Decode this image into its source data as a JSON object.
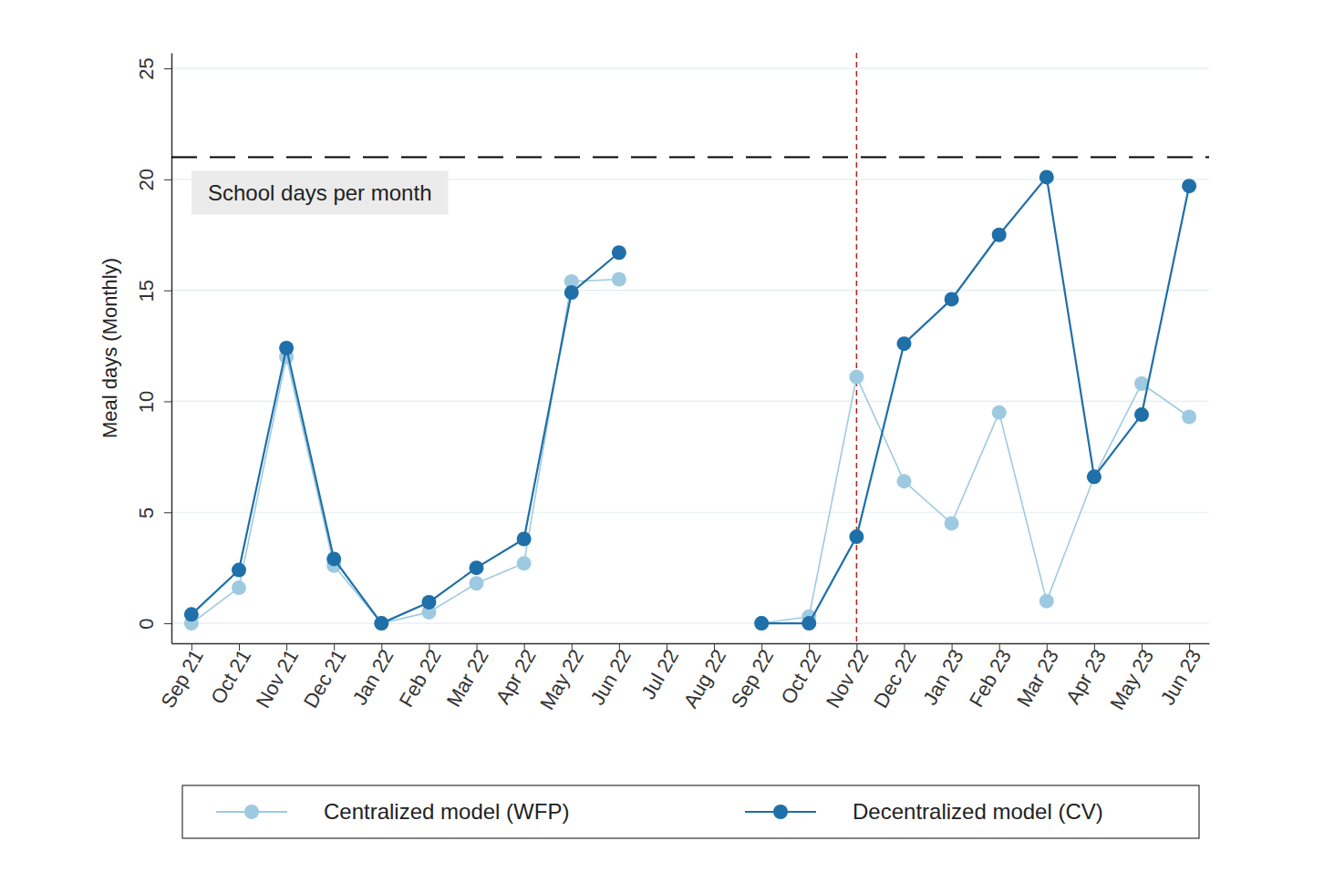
{
  "chart_data": {
    "type": "line",
    "ylabel": "Meal days (Monthly)",
    "categories": [
      "Sep 21",
      "Oct 21",
      "Nov 21",
      "Dec 21",
      "Jan 22",
      "Feb 22",
      "Mar 22",
      "Apr 22",
      "May 22",
      "Jun 22",
      "Jul 22",
      "Aug 22",
      "Sep 22",
      "Oct 22",
      "Nov 22",
      "Dec 22",
      "Jan 23",
      "Feb 23",
      "Mar 23",
      "Apr 23",
      "May 23",
      "Jun 23"
    ],
    "series": [
      {
        "name": "Centralized model (WFP)",
        "color": "#9ecae1",
        "marker": "circle",
        "values": [
          0,
          1.6,
          12.0,
          2.6,
          0,
          0.5,
          1.8,
          2.7,
          15.4,
          15.5,
          null,
          null,
          0,
          0.3,
          11.1,
          6.4,
          4.5,
          9.5,
          1.0,
          6.6,
          10.8,
          9.3
        ]
      },
      {
        "name": "Decentralized model (CV)",
        "color": "#1f6fa8",
        "marker": "circle",
        "values": [
          0.4,
          2.4,
          12.4,
          2.9,
          0,
          0.95,
          2.5,
          3.8,
          14.9,
          16.7,
          null,
          null,
          0,
          0,
          3.9,
          12.6,
          14.6,
          17.5,
          20.1,
          6.6,
          9.4,
          19.7
        ]
      }
    ],
    "ylim": [
      -0.9,
      25.7
    ],
    "yticks": [
      0,
      5,
      10,
      15,
      20,
      25
    ],
    "grid": true,
    "legend": "bottom",
    "reference_lines": [
      {
        "axis": "y",
        "value": 21,
        "label": "School days per month",
        "color": "#000000",
        "line_style": "dashed"
      },
      {
        "axis": "x",
        "value": "Nov 22",
        "color": "#b22222",
        "line_style": "dashed"
      }
    ]
  }
}
